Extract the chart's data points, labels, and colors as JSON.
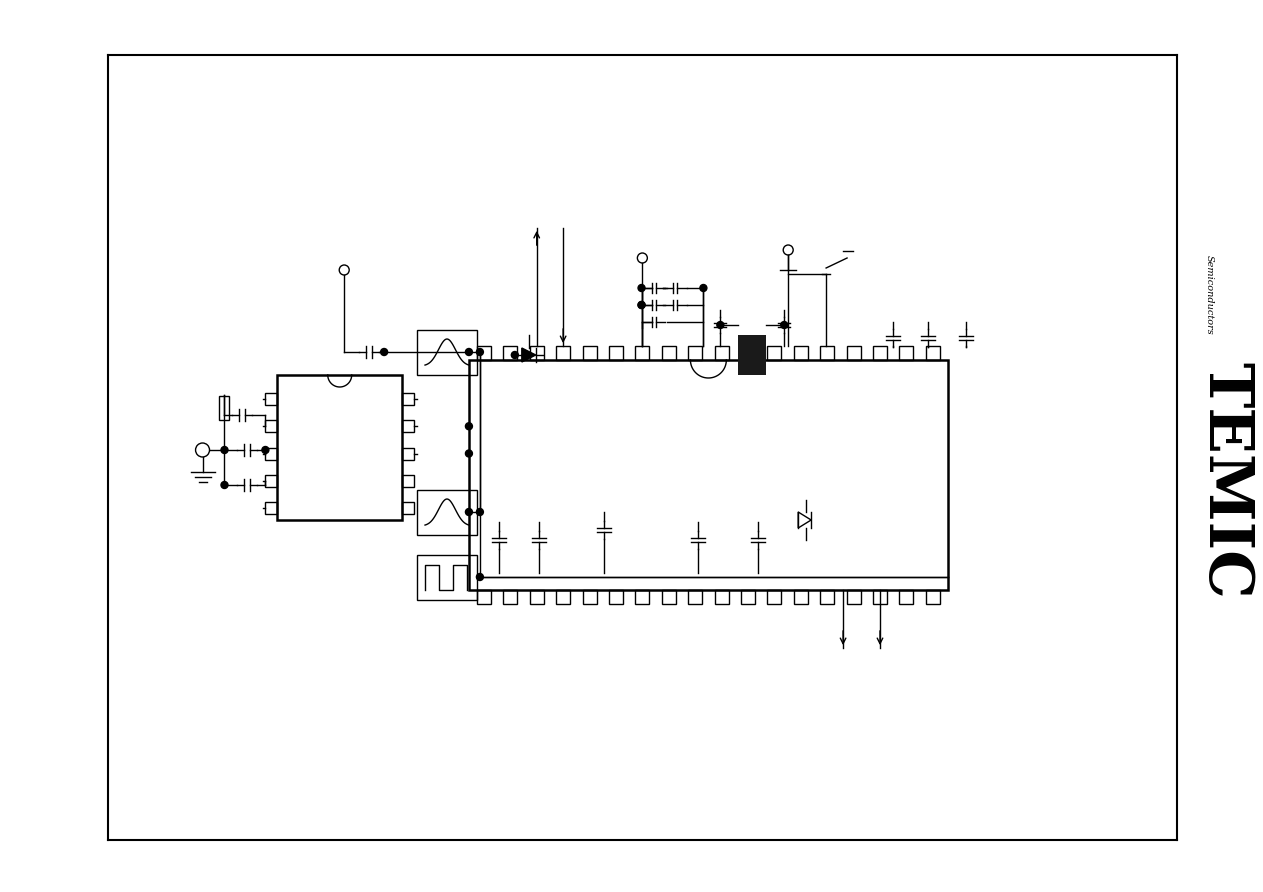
{
  "bg": "#ffffff",
  "lc": "#000000",
  "fw": 12.63,
  "fh": 8.92,
  "dpi": 100,
  "border": [
    108,
    55,
    1180,
    840
  ],
  "main_ic": [
    470,
    360,
    480,
    230
  ],
  "small_ic": [
    278,
    375,
    125,
    145
  ],
  "fb1": [
    418,
    330,
    60,
    45
  ],
  "fb2": [
    418,
    490,
    60,
    45
  ],
  "fb3": [
    418,
    555,
    60,
    45
  ]
}
